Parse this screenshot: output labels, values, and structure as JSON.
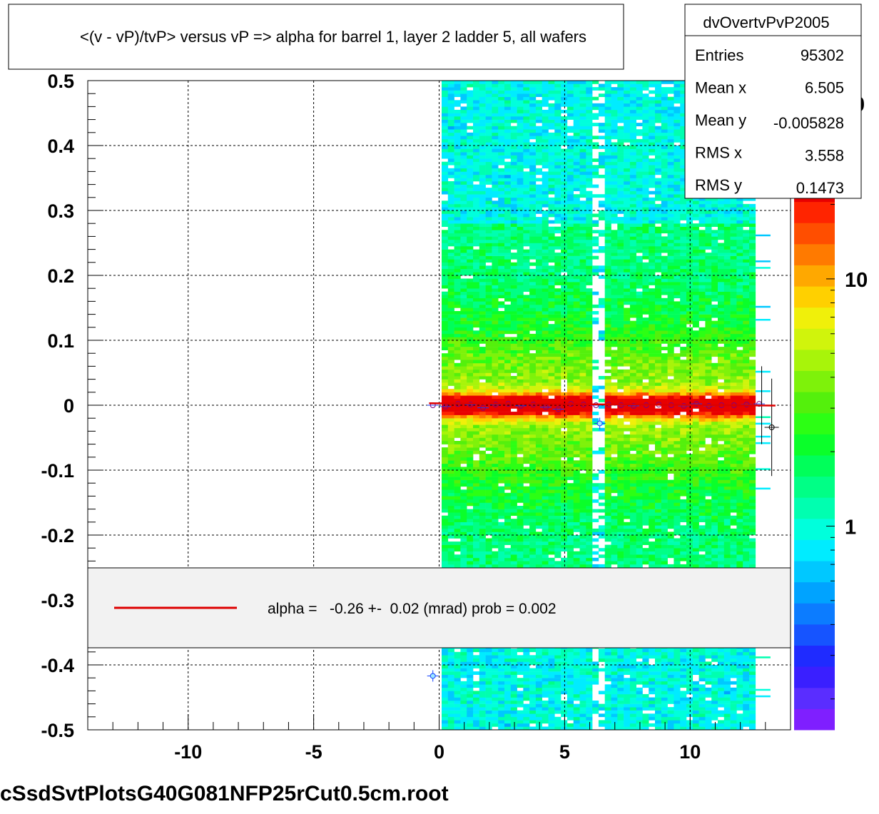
{
  "title": "<(v - vP)/tvP> versus   vP => alpha for barrel 1, layer 2 ladder 5, all wafers",
  "footer": "cSsdSvtPlotsG40G081NFP25rCut0.5cm.root",
  "stats": {
    "name": "dvOvertvPvP2005",
    "rows": [
      {
        "label": "Entries",
        "value": "95302"
      },
      {
        "label": "Mean x",
        "value": "6.505"
      },
      {
        "label": "Mean y",
        "value": "-0.005828"
      },
      {
        "label": "RMS x",
        "value": "3.558"
      },
      {
        "label": "RMS y",
        "value": "0.1473"
      }
    ]
  },
  "legend": {
    "text": "alpha =   -0.26 +-  0.02 (mrad) prob = 0.002",
    "line_color": "#dd0000"
  },
  "colorbar": {
    "labels": [
      {
        "text": "1",
        "value": 1
      },
      {
        "text": "10",
        "value": 10
      }
    ],
    "top_partial_label": "0"
  },
  "chart_data": {
    "type": "heatmap",
    "title": "<(v - vP)/tvP> versus   vP => alpha for barrel 1, layer 2 ladder 5, all wafers",
    "xlabel": "",
    "ylabel": "",
    "xlim": [
      -14,
      14
    ],
    "ylim": [
      -0.5,
      0.5
    ],
    "x_ticks": [
      {
        "value": -10,
        "label": "-10"
      },
      {
        "value": -5,
        "label": "-5"
      },
      {
        "value": 0,
        "label": "0"
      },
      {
        "value": 5,
        "label": "5"
      },
      {
        "value": 10,
        "label": "10"
      }
    ],
    "y_ticks": [
      {
        "value": 0.5,
        "label": "0.5"
      },
      {
        "value": 0.4,
        "label": "0.4"
      },
      {
        "value": 0.3,
        "label": "0.3"
      },
      {
        "value": 0.2,
        "label": "0.2"
      },
      {
        "value": 0.1,
        "label": "0.1"
      },
      {
        "value": 0,
        "label": "0"
      },
      {
        "value": -0.1,
        "label": "-0.1"
      },
      {
        "value": -0.2,
        "label": "-0.2"
      },
      {
        "value": -0.3,
        "label": "-0.3"
      },
      {
        "value": -0.4,
        "label": "-0.4"
      },
      {
        "value": -0.5,
        "label": "-0.5"
      }
    ],
    "grid": true,
    "log_z": true,
    "z_range": [
      0.15,
      25
    ],
    "data_x_range": [
      0.1,
      12.6
    ],
    "dead_column_x": [
      6.3,
      6.5
    ],
    "profile_points": [
      {
        "x": -0.25,
        "y": 0.0
      },
      {
        "x": 0.25,
        "y": -0.002
      },
      {
        "x": 0.75,
        "y": 0.002
      },
      {
        "x": 1.25,
        "y": 0.001
      },
      {
        "x": 1.75,
        "y": -0.004
      },
      {
        "x": 2.25,
        "y": 0.001
      },
      {
        "x": 2.75,
        "y": 0.002
      },
      {
        "x": 3.25,
        "y": -0.001
      },
      {
        "x": 3.75,
        "y": 0.001
      },
      {
        "x": 4.25,
        "y": -0.003
      },
      {
        "x": 4.75,
        "y": -0.006
      },
      {
        "x": 5.25,
        "y": 0.002
      },
      {
        "x": 5.75,
        "y": 0.001
      },
      {
        "x": 6.25,
        "y": 0.0
      },
      {
        "x": 6.4,
        "y": -0.028
      },
      {
        "x": 6.75,
        "y": 0.001
      },
      {
        "x": 7.25,
        "y": 0.0
      },
      {
        "x": 7.75,
        "y": -0.001
      },
      {
        "x": 8.25,
        "y": 0.0
      },
      {
        "x": 8.75,
        "y": 0.001
      },
      {
        "x": 9.25,
        "y": 0.0
      },
      {
        "x": 9.75,
        "y": -0.001
      },
      {
        "x": 10.25,
        "y": 0.002
      },
      {
        "x": 10.75,
        "y": -0.001
      },
      {
        "x": 11.25,
        "y": 0.0
      },
      {
        "x": 11.75,
        "y": 0.0
      },
      {
        "x": 12.25,
        "y": 0.001
      },
      {
        "x": 12.75,
        "y": 0.002
      },
      {
        "x": 13.25,
        "y": -0.034,
        "yerr": 0.075
      },
      {
        "x": -0.25,
        "y": -0.417
      }
    ],
    "fit_line": {
      "x": [
        -0.4,
        13.4
      ],
      "y": [
        0.003,
        -0.0005
      ],
      "color": "#dd0000"
    }
  }
}
